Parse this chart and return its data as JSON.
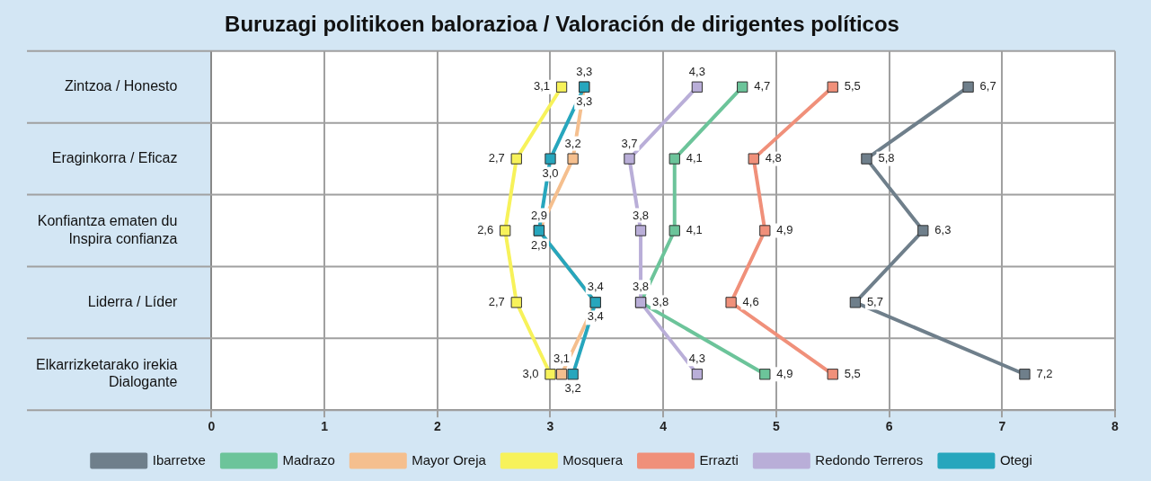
{
  "chart_data": {
    "type": "line",
    "orientation": "horizontal",
    "title": "Buruzagi politikoen balorazioa / Valoración de dirigentes políticos",
    "categories": [
      "Zintzoa / Honesto",
      "Eraginkorra / Eficaz",
      "Konfiantza ematen du\nInspira confianza",
      "Liderra / Líder",
      "Elkarrizketarako irekia\nDialogante"
    ],
    "series": [
      {
        "name": "Ibarretxe",
        "color": "#6f7f8b",
        "values": [
          6.7,
          5.8,
          6.3,
          5.7,
          7.2
        ],
        "value_labels": [
          "6,7",
          "5,8",
          "6,3",
          "5,7",
          "7,2"
        ]
      },
      {
        "name": "Madrazo",
        "color": "#6cc49a",
        "values": [
          4.7,
          4.1,
          4.1,
          3.8,
          4.9
        ],
        "value_labels": [
          "4,7",
          "4,1",
          "4,1",
          "3,8",
          "4,9"
        ]
      },
      {
        "name": "Mayor Oreja",
        "color": "#f5bf8e",
        "values": [
          3.3,
          3.2,
          2.9,
          3.4,
          3.1
        ],
        "value_labels": [
          "3,3",
          "3,2",
          "2,9",
          "3,4",
          "3,1"
        ]
      },
      {
        "name": "Mosquera",
        "color": "#f7f25a",
        "values": [
          3.1,
          2.7,
          2.6,
          2.7,
          3.0
        ],
        "value_labels": [
          "3,1",
          "2,7",
          "2,6",
          "2,7",
          "3,0"
        ]
      },
      {
        "name": "Errazti",
        "color": "#f0907a",
        "values": [
          5.5,
          4.8,
          4.9,
          4.6,
          5.5
        ],
        "value_labels": [
          "5,5",
          "4,8",
          "4,9",
          "4,6",
          "5,5"
        ]
      },
      {
        "name": "Redondo Terreros",
        "color": "#b9aed8",
        "values": [
          4.3,
          3.7,
          3.8,
          3.8,
          4.3
        ],
        "value_labels": [
          "4,3",
          "3,7",
          "3,8",
          "3,8",
          "4,3"
        ]
      },
      {
        "name": "Otegi",
        "color": "#27a6bd",
        "values": [
          3.3,
          3.0,
          2.9,
          3.4,
          3.2
        ],
        "value_labels": [
          "3,3",
          "3,0",
          "2,9",
          "3,4",
          "3,2"
        ]
      }
    ],
    "xlim": [
      0,
      8
    ],
    "xticks": [
      0,
      1,
      2,
      3,
      4,
      5,
      6,
      7,
      8
    ],
    "grid": true,
    "legend": "bottom",
    "marker": "square",
    "line_style": "solid"
  }
}
